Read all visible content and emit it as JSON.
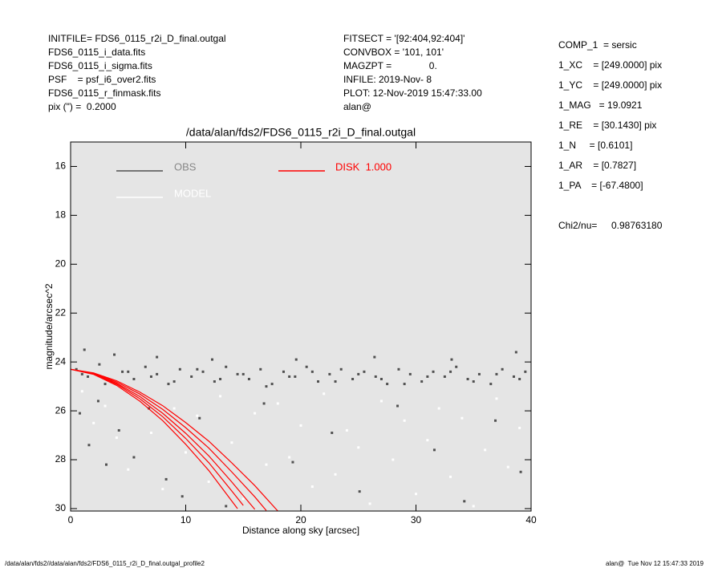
{
  "header": {
    "left": [
      "INITFILE= FDS6_0115_r2i_D_final.outgal",
      "FDS6_0115_i_data.fits",
      "FDS6_0115_i_sigma.fits",
      "PSF    = psf_i6_over2.fits",
      "FDS6_0115_r_finmask.fits",
      "pix (\") =  0.2000"
    ],
    "middle": [
      "FITSECT = '[92:404,92:404]'",
      "CONVBOX = '101, 101'",
      "MAGZPT =              0.",
      "INFILE: 2019-Nov- 8",
      "PLOT: 12-Nov-2019 15:47:33.00",
      "alan@"
    ],
    "right": [
      "COMP_1  = sersic",
      "1_XC    = [249.0000] pix",
      "1_YC    = [249.0000] pix",
      "1_MAG   = 19.0921",
      "1_RE    = [30.1430] pix",
      "1_N     = [0.6101]",
      "1_AR    = [0.7827]",
      "1_PA    = [-67.4800]"
    ],
    "chi2_label": "Chi2/nu=",
    "chi2_value": "0.98763180"
  },
  "footer": {
    "left": "/data/alan/fds2//data/alan/fds2/FDS6_0115_r2i_D_final.outgal_profile2",
    "right": "alan@  Tue Nov 12 15:47:33 2019"
  },
  "chart_data": {
    "type": "scatter",
    "title": "/data/alan/fds2/FDS6_0115_r2i_D_final.outgal",
    "x_label": "Distance along sky [arcsec]",
    "y_label": "magnitude/arcsec^2",
    "xlim": [
      0,
      40
    ],
    "ylim": [
      30.1,
      15
    ],
    "xticks": [
      0,
      10,
      20,
      30,
      40
    ],
    "yticks": [
      16,
      18,
      20,
      22,
      24,
      26,
      28,
      30
    ],
    "background": "#e5e5e5",
    "series": [
      {
        "name": "OBS",
        "color": "#505050",
        "x": [
          0.5,
          1.5,
          2.5,
          3.5,
          4.5,
          5.5,
          6.5,
          7.5,
          8.5,
          9.5,
          10.5,
          11.5,
          12.5,
          13.5,
          14.5,
          15.5,
          16.5,
          17.5,
          18.5,
          19.5,
          20.5,
          21.5,
          22.5,
          23.5,
          24.5,
          25.5,
          26.5,
          27.5,
          28.5,
          29.5,
          30.5,
          31.5,
          32.5,
          33.5,
          34.5,
          35.5,
          36.5,
          37.5,
          38.5,
          39.5,
          1,
          3,
          5,
          7,
          9,
          11,
          13,
          15,
          17,
          19,
          21,
          23,
          25,
          27,
          29,
          31,
          33,
          35,
          37,
          39,
          1.2,
          3.8,
          7.5,
          12.3,
          19.6,
          26.4,
          33.1,
          38.7,
          0.8,
          1.6,
          2.4,
          3.1,
          4.2,
          5.5,
          6.8,
          8.3,
          9.7,
          11.2,
          13.5,
          16.8,
          19.3,
          22.7,
          25.1,
          28.4,
          31.6,
          34.2,
          36.9,
          39.1
        ],
        "values": [
          24.3,
          24.6,
          24.1,
          24.8,
          24.4,
          24.7,
          24.2,
          24.5,
          24.9,
          24.3,
          24.6,
          24.4,
          24.8,
          24.2,
          24.5,
          24.7,
          24.3,
          24.9,
          24.4,
          24.6,
          24.2,
          24.8,
          24.5,
          24.3,
          24.7,
          24.4,
          24.6,
          24.9,
          24.3,
          24.5,
          24.8,
          24.4,
          24.6,
          24.2,
          24.7,
          24.5,
          24.9,
          24.3,
          24.6,
          24.4,
          24.5,
          24.9,
          24.4,
          24.6,
          24.8,
          24.3,
          24.7,
          24.5,
          25.0,
          24.6,
          24.4,
          24.8,
          24.5,
          24.7,
          24.9,
          24.6,
          24.4,
          24.8,
          24.5,
          24.7,
          23.5,
          23.7,
          23.8,
          23.9,
          23.9,
          23.8,
          23.9,
          23.6,
          26.1,
          27.4,
          25.6,
          28.2,
          26.8,
          27.9,
          25.9,
          28.8,
          29.5,
          26.3,
          29.9,
          25.7,
          28.1,
          26.9,
          29.3,
          25.8,
          27.6,
          29.7,
          26.4,
          28.5
        ]
      },
      {
        "name": "MODEL",
        "color": "#ffffff",
        "x": [
          1,
          2,
          3,
          4,
          5,
          6,
          7,
          8,
          9,
          10,
          11,
          12,
          13,
          14,
          15,
          16,
          17,
          18,
          19,
          20,
          21,
          22,
          23,
          24,
          25,
          26,
          27,
          28,
          29,
          30,
          31,
          32,
          33,
          34,
          35,
          36,
          37,
          38,
          39
        ],
        "values": [
          25.2,
          26.5,
          25.8,
          27.1,
          28.4,
          25.5,
          26.9,
          29.2,
          25.9,
          27.7,
          26.2,
          28.9,
          25.4,
          27.3,
          29.6,
          26.1,
          28.2,
          25.7,
          27.9,
          26.6,
          29.1,
          25.3,
          28.6,
          26.8,
          27.5,
          29.8,
          25.6,
          28.0,
          26.4,
          29.4,
          27.2,
          25.9,
          28.7,
          26.3,
          29.9,
          27.6,
          25.5,
          28.3,
          26.7
        ]
      },
      {
        "name": "DISK  1.000",
        "color": "#ff0000",
        "curves": [
          {
            "x": [
              0,
              2,
              4,
              6,
              8,
              10,
              12,
              14,
              16,
              18
            ],
            "values": [
              24.3,
              24.45,
              24.77,
              25.23,
              25.79,
              26.48,
              27.24,
              28.13,
              29.06,
              30.1
            ]
          },
          {
            "x": [
              0,
              2,
              4,
              6,
              8,
              10,
              12,
              14,
              16,
              17
            ],
            "values": [
              24.3,
              24.46,
              24.82,
              25.31,
              25.94,
              26.69,
              27.52,
              28.5,
              29.52,
              30.08
            ]
          },
          {
            "x": [
              0,
              2,
              4,
              6,
              8,
              10,
              12,
              14,
              16
            ],
            "values": [
              24.3,
              24.48,
              24.87,
              25.41,
              26.1,
              26.92,
              27.84,
              28.91,
              30.03
            ]
          },
          {
            "x": [
              0,
              2,
              4,
              6,
              8,
              10,
              12,
              14,
              15
            ],
            "values": [
              24.3,
              24.49,
              24.91,
              25.5,
              26.24,
              27.13,
              28.12,
              29.28,
              29.87
            ]
          },
          {
            "x": [
              0,
              2,
              4,
              6,
              8,
              10,
              12,
              14,
              14.5
            ],
            "values": [
              24.3,
              24.51,
              24.96,
              25.6,
              26.4,
              27.37,
              28.44,
              29.69,
              30.0
            ]
          }
        ]
      }
    ]
  }
}
